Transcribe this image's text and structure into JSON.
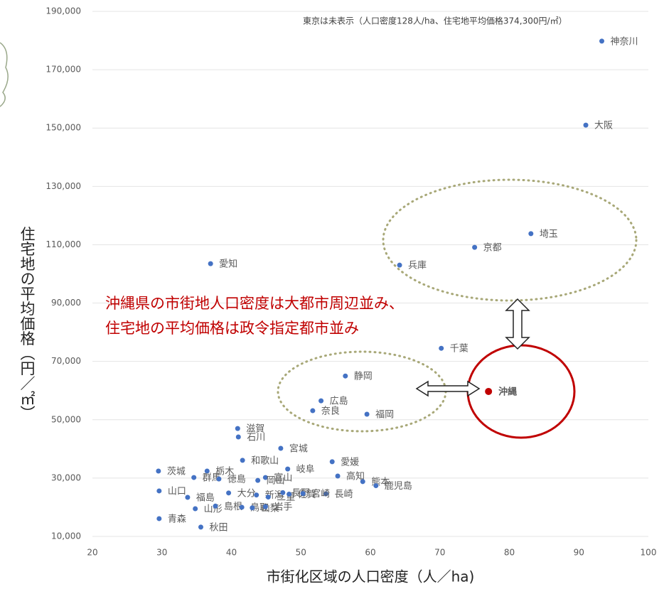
{
  "chart_data": {
    "type": "scatter",
    "note": "東京は未表示（人口密度128人/ha、住宅地平均価格374,300円/㎡）",
    "annotation": [
      "沖縄県の市街地人口密度は大都市周辺並み、",
      "住宅地の平均価格は政令指定都市並み"
    ],
    "xlabel": "市街化区域の人口密度（人／ha)",
    "ylabel": "住宅地の平均価格（円／㎡）",
    "xlim": [
      20,
      100
    ],
    "xticks": [
      20,
      30,
      40,
      50,
      60,
      70,
      80,
      90,
      100
    ],
    "ylim": [
      10000,
      190000
    ],
    "yticks": [
      {
        "value": 10000,
        "label": "10,000"
      },
      {
        "value": 30000,
        "label": "30,000"
      },
      {
        "value": 50000,
        "label": "50,000"
      },
      {
        "value": 70000,
        "label": "70,000"
      },
      {
        "value": 90000,
        "label": "90,000"
      },
      {
        "value": 110000,
        "label": "110,000"
      },
      {
        "value": 130000,
        "label": "130,000"
      },
      {
        "value": 150000,
        "label": "150,000"
      },
      {
        "value": 170000,
        "label": "170,000"
      },
      {
        "value": 190000,
        "label": "190,000"
      }
    ],
    "grid": true,
    "series": [
      {
        "color": "#4472c4",
        "labels": [
          "神奈川",
          "大阪",
          "埼玉",
          "京都",
          "兵庫",
          "愛知",
          "千葉",
          "静岡",
          "広島",
          "奈良",
          "福岡",
          "滋賀",
          "石川",
          "宮城",
          "和歌山",
          "愛媛",
          "岐阜",
          "茨城",
          "栃木",
          "群馬",
          "徳島",
          "高知",
          "富山",
          "岡山",
          "熊本",
          "鹿児島",
          "長崎",
          "山口",
          "福島",
          "大分",
          "新潟",
          "三重",
          "長野",
          "佐賀",
          "宮崎",
          "山形",
          "島根",
          "鳥取",
          "山梨",
          "岩手",
          "青森",
          "秋田"
        ],
        "x": [
          93.3,
          91.0,
          83.1,
          75.0,
          64.2,
          37.0,
          70.2,
          56.4,
          52.9,
          51.7,
          59.5,
          40.9,
          41.0,
          47.1,
          41.6,
          54.5,
          48.1,
          29.5,
          36.5,
          34.6,
          38.2,
          55.3,
          44.9,
          43.8,
          58.9,
          60.8,
          53.6,
          29.6,
          33.7,
          39.6,
          43.6,
          45.3,
          47.4,
          48.3,
          50.3,
          34.8,
          37.7,
          41.5,
          43.0,
          44.9,
          29.6,
          35.6
        ],
        "values": [
          179800,
          151000,
          113800,
          109100,
          103000,
          103500,
          74500,
          65000,
          56500,
          53100,
          51900,
          47000,
          44100,
          40200,
          36100,
          35600,
          33100,
          32400,
          32400,
          30200,
          29700,
          30700,
          30200,
          29200,
          28800,
          27400,
          24600,
          25600,
          23400,
          24900,
          24200,
          23500,
          25000,
          24500,
          24700,
          19500,
          20400,
          20000,
          19800,
          20200,
          16100,
          13200
        ]
      },
      {
        "color": "#c00000",
        "labels": [
          "沖縄"
        ],
        "x": [
          77.0
        ],
        "values": [
          59700
        ]
      }
    ]
  }
}
